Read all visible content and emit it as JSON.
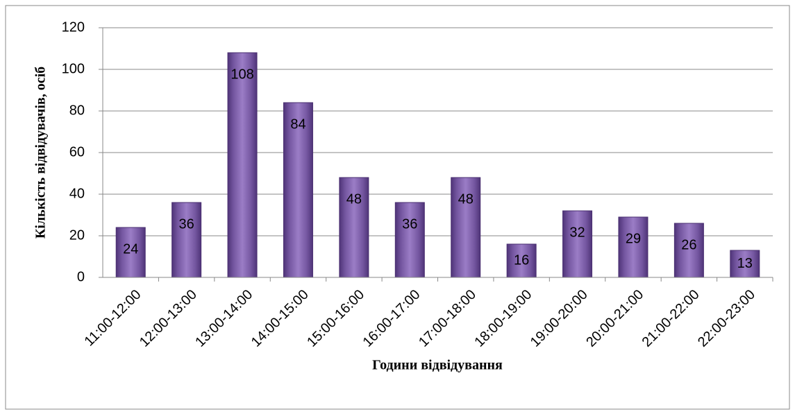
{
  "chart_data": {
    "type": "bar",
    "x_label": "Години відвідування",
    "y_label": "Кількість відвідувачів, осіб",
    "categories": [
      "11:00-12:00",
      "12:00-13:00",
      "13:00-14:00",
      "14:00-15:00",
      "15:00-16:00",
      "16:00-17:00",
      "17:00-18:00",
      "18:00-19:00",
      "19:00-20:00",
      "20:00-21:00",
      "21:00-22:00",
      "22:00-23:00"
    ],
    "values": [
      24,
      36,
      108,
      84,
      48,
      36,
      48,
      16,
      32,
      29,
      26,
      13
    ],
    "color": "#7b5ca6",
    "ylim": [
      0,
      120
    ],
    "yticks": [
      0,
      20,
      40,
      60,
      80,
      100,
      120
    ],
    "grid": true
  }
}
